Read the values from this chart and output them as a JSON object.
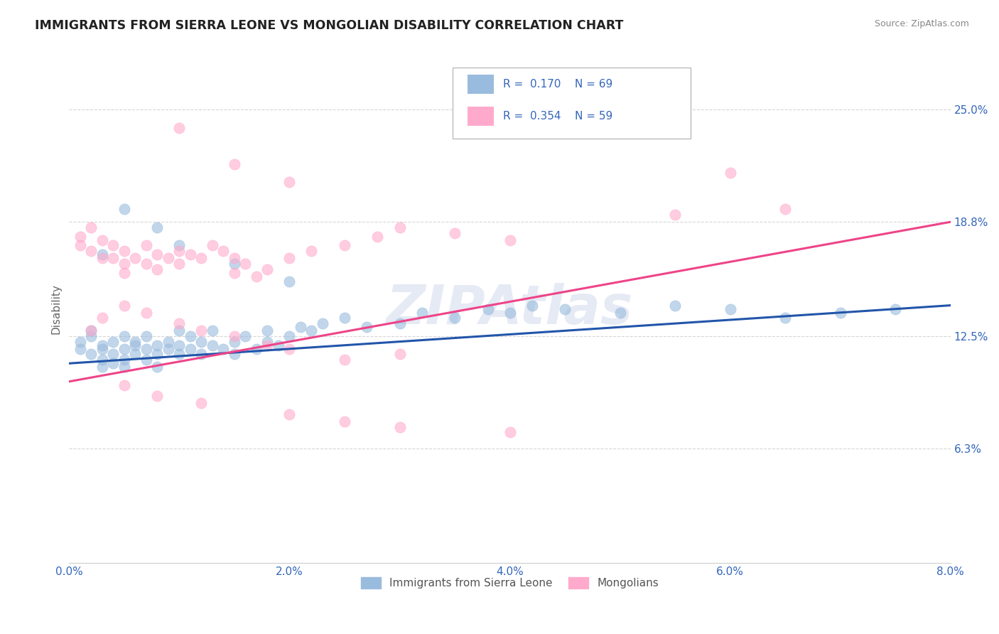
{
  "title": "IMMIGRANTS FROM SIERRA LEONE VS MONGOLIAN DISABILITY CORRELATION CHART",
  "source": "Source: ZipAtlas.com",
  "ylabel": "Disability",
  "watermark": "ZIPAtlas",
  "xlim": [
    0.0,
    0.08
  ],
  "ylim": [
    0.0,
    0.28
  ],
  "xtick_labels": [
    "0.0%",
    "",
    "2.0%",
    "",
    "4.0%",
    "",
    "6.0%",
    "",
    "8.0%"
  ],
  "xtick_values": [
    0.0,
    0.01,
    0.02,
    0.03,
    0.04,
    0.05,
    0.06,
    0.07,
    0.08
  ],
  "xtick_display": [
    "0.0%",
    "2.0%",
    "4.0%",
    "6.0%",
    "8.0%"
  ],
  "xtick_display_vals": [
    0.0,
    0.02,
    0.04,
    0.06,
    0.08
  ],
  "ytick_labels": [
    "6.3%",
    "12.5%",
    "18.8%",
    "25.0%"
  ],
  "ytick_values": [
    0.063,
    0.125,
    0.188,
    0.25
  ],
  "blue_color": "#99BBDD",
  "pink_color": "#FFAACC",
  "blue_line_color": "#2255AA",
  "pink_line_color": "#EE4488",
  "legend_blue_r": "0.170",
  "legend_blue_n": "69",
  "legend_pink_r": "0.354",
  "legend_pink_n": "59",
  "legend_label_blue": "Immigrants from Sierra Leone",
  "legend_label_pink": "Mongolians",
  "title_color": "#222222",
  "axis_label_color": "#3366BB",
  "source_color": "#888888",
  "watermark_color": "#AABBDD",
  "blue_scatter_x": [
    0.001,
    0.001,
    0.002,
    0.002,
    0.002,
    0.003,
    0.003,
    0.003,
    0.003,
    0.004,
    0.004,
    0.004,
    0.005,
    0.005,
    0.005,
    0.005,
    0.006,
    0.006,
    0.006,
    0.007,
    0.007,
    0.007,
    0.008,
    0.008,
    0.008,
    0.009,
    0.009,
    0.01,
    0.01,
    0.01,
    0.011,
    0.011,
    0.012,
    0.012,
    0.013,
    0.013,
    0.014,
    0.015,
    0.015,
    0.016,
    0.017,
    0.018,
    0.018,
    0.019,
    0.02,
    0.021,
    0.022,
    0.023,
    0.025,
    0.027,
    0.03,
    0.032,
    0.035,
    0.038,
    0.04,
    0.042,
    0.045,
    0.05,
    0.055,
    0.06,
    0.065,
    0.07,
    0.075,
    0.003,
    0.005,
    0.008,
    0.01,
    0.015,
    0.02
  ],
  "blue_scatter_y": [
    0.122,
    0.118,
    0.115,
    0.125,
    0.128,
    0.12,
    0.112,
    0.108,
    0.118,
    0.122,
    0.115,
    0.11,
    0.125,
    0.118,
    0.112,
    0.108,
    0.12,
    0.115,
    0.122,
    0.118,
    0.112,
    0.125,
    0.12,
    0.115,
    0.108,
    0.118,
    0.122,
    0.128,
    0.115,
    0.12,
    0.118,
    0.125,
    0.122,
    0.115,
    0.12,
    0.128,
    0.118,
    0.122,
    0.115,
    0.125,
    0.118,
    0.122,
    0.128,
    0.12,
    0.125,
    0.13,
    0.128,
    0.132,
    0.135,
    0.13,
    0.132,
    0.138,
    0.135,
    0.14,
    0.138,
    0.142,
    0.14,
    0.138,
    0.142,
    0.14,
    0.135,
    0.138,
    0.14,
    0.17,
    0.195,
    0.185,
    0.175,
    0.165,
    0.155
  ],
  "pink_scatter_x": [
    0.001,
    0.001,
    0.002,
    0.002,
    0.003,
    0.003,
    0.004,
    0.004,
    0.005,
    0.005,
    0.005,
    0.006,
    0.007,
    0.007,
    0.008,
    0.008,
    0.009,
    0.01,
    0.01,
    0.011,
    0.012,
    0.013,
    0.014,
    0.015,
    0.015,
    0.016,
    0.017,
    0.018,
    0.02,
    0.022,
    0.025,
    0.028,
    0.03,
    0.035,
    0.04,
    0.002,
    0.003,
    0.005,
    0.007,
    0.01,
    0.012,
    0.015,
    0.018,
    0.02,
    0.025,
    0.03,
    0.005,
    0.008,
    0.012,
    0.02,
    0.025,
    0.03,
    0.04,
    0.01,
    0.015,
    0.02,
    0.06,
    0.065,
    0.055
  ],
  "pink_scatter_y": [
    0.175,
    0.18,
    0.172,
    0.185,
    0.168,
    0.178,
    0.175,
    0.168,
    0.165,
    0.172,
    0.16,
    0.168,
    0.175,
    0.165,
    0.17,
    0.162,
    0.168,
    0.172,
    0.165,
    0.17,
    0.168,
    0.175,
    0.172,
    0.168,
    0.16,
    0.165,
    0.158,
    0.162,
    0.168,
    0.172,
    0.175,
    0.18,
    0.185,
    0.182,
    0.178,
    0.128,
    0.135,
    0.142,
    0.138,
    0.132,
    0.128,
    0.125,
    0.12,
    0.118,
    0.112,
    0.115,
    0.098,
    0.092,
    0.088,
    0.082,
    0.078,
    0.075,
    0.072,
    0.24,
    0.22,
    0.21,
    0.215,
    0.195,
    0.192
  ],
  "blue_trend_x": [
    0.0,
    0.08
  ],
  "blue_trend_y": [
    0.11,
    0.142
  ],
  "pink_trend_x": [
    0.0,
    0.08
  ],
  "pink_trend_y": [
    0.1,
    0.188
  ]
}
